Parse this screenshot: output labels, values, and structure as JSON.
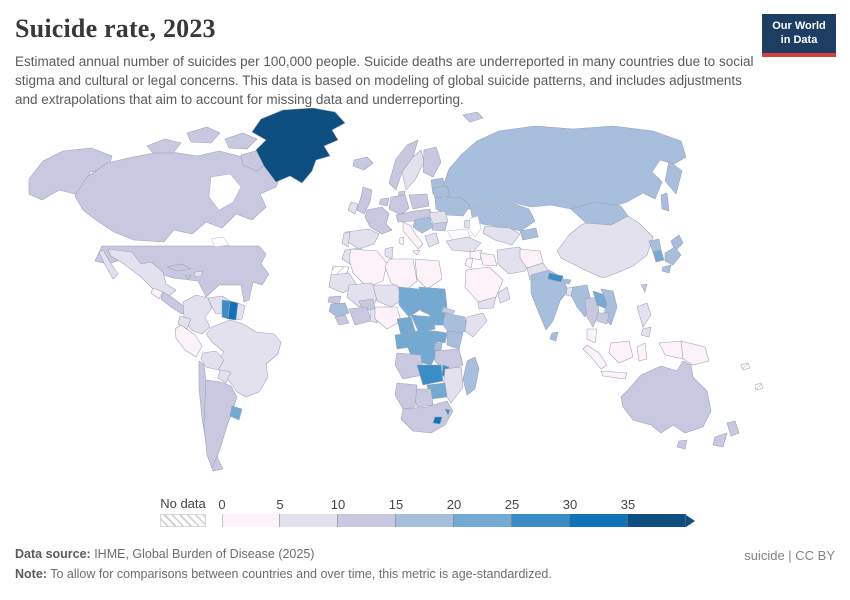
{
  "header": {
    "title": "Suicide rate, 2023",
    "subtitle": "Estimated annual number of suicides per 100,000 people. Suicide deaths are underreported in many countries due to social stigma and cultural or legal concerns. This data is based on modeling of global suicide patterns, and includes adjustments and extrapolations that aim to account for missing data and underreporting.",
    "logo": {
      "line1": "Our World",
      "line2": "in Data",
      "bg_color": "#1d3d63",
      "accent_color": "#d7413d"
    }
  },
  "chart_data": {
    "type": "choropleth-map",
    "title": "Suicide rate, 2023",
    "unit": "estimated suicides per 100,000 people (age-standardized)",
    "legend": {
      "no_data_label": "No data",
      "tick_labels": [
        "0",
        "5",
        "10",
        "15",
        "20",
        "25",
        "30",
        "35"
      ],
      "bin_edges": [
        0,
        5,
        10,
        15,
        20,
        25,
        30,
        35
      ],
      "open_ended_max": true,
      "bin_colors": [
        "#fdf2f7",
        "#e4e1ee",
        "#c8c9e0",
        "#a8bedd",
        "#74aad2",
        "#3b8ec5",
        "#1173b7",
        "#0d4f80"
      ],
      "no_data_pattern": "diagonal-hatch"
    },
    "regions": {
      "canada": 2,
      "united-states": 2,
      "greenland": 7,
      "mexico": 1,
      "guatemala": 0,
      "central-america": 2,
      "cuba": 2,
      "hispaniola": 1,
      "jamaica": 2,
      "colombia": 1,
      "venezuela": 1,
      "guyana": 5,
      "suriname": 6,
      "french-guiana": 1,
      "brazil": 1,
      "ecuador": 1,
      "peru": 0,
      "bolivia": 1,
      "paraguay": 1,
      "chile": 2,
      "argentina": 2,
      "uruguay": 4,
      "iceland": 2,
      "united-kingdom": 2,
      "ireland": 1,
      "norway": 2,
      "svalbard": 2,
      "sweden": 1,
      "finland": 2,
      "baltics": 3,
      "denmark": 2,
      "benelux": 2,
      "germany": 2,
      "poland": 2,
      "france": 2,
      "spain": 1,
      "portugal": 1,
      "central-europe": 2,
      "italy": 0,
      "balkans": 3,
      "greece": 1,
      "romania": 1,
      "bulgaria": 2,
      "ukraine": 3,
      "belarus": 3,
      "russia": 3,
      "kazakhstan": 3,
      "central-asia": 1,
      "kyrgyzstan-tajikistan": 3,
      "caucasus": 1,
      "turkey": 1,
      "syria": 0,
      "iraq": 0,
      "jordan-israel": 0,
      "iran": 1,
      "afghanistan": 0,
      "pakistan": 1,
      "saudi-arabia": 0,
      "yemen": 1,
      "oman": 1,
      "morocco": 1,
      "western-sahara": -1,
      "mauritania": 1,
      "algeria": 0,
      "tunisia": 1,
      "libya": 0,
      "egypt": 0,
      "mali": 1,
      "niger": 1,
      "chad": 4,
      "sudan": 4,
      "eritrea": 2,
      "senegal": 2,
      "guinea": 3,
      "sierra-leone": 2,
      "cote-divoire-ghana": 2,
      "burkina-faso": 2,
      "nigeria": 0,
      "benin-togo": 1,
      "cameroon": 4,
      "central-african-republic": 4,
      "south-sudan": 4,
      "ethiopia": 3,
      "somalia": 1,
      "gabon-congo": 4,
      "democratic-republic-of-congo": 4,
      "uganda": 4,
      "kenya": 3,
      "rwanda-burundi": 3,
      "tanzania": 2,
      "angola": 2,
      "zambia": 5,
      "malawi": 5,
      "mozambique": 1,
      "zimbabwe": 4,
      "botswana": 2,
      "namibia": 2,
      "south-africa": 2,
      "lesotho": 6,
      "eswatini": 5,
      "madagascar": 3,
      "india": 3,
      "sri-lanka": 3,
      "nepal": 5,
      "bhutan": 3,
      "bangladesh": 1,
      "china": 1,
      "mongolia": 3,
      "myanmar": 3,
      "thailand": 2,
      "laos": 4,
      "vietnam": 3,
      "cambodia": 2,
      "malaysia": 0,
      "philippines": 1,
      "taiwan": 2,
      "japan": 3,
      "south-korea": 4,
      "north-korea": 3,
      "indonesia": 0,
      "papua-new-guinea": 0,
      "pacific-islands": -1,
      "australia": 2,
      "new-zealand": 2
    }
  },
  "footer": {
    "source_label": "Data source:",
    "source_value": " IHME, Global Burden of Disease (2025)",
    "note_label": "Note:",
    "note_value": " To allow for comparisons between countries and over time, this metric is age-standardized.",
    "license": "suicide | CC BY"
  }
}
